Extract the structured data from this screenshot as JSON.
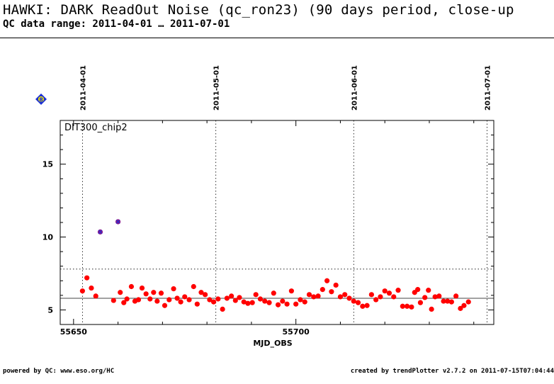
{
  "header": {
    "title": "HAWKI: DARK ReadOut Noise (qc_ron23) (90 days period, close-up",
    "subtitle": "QC data range: 2011-04-01 … 2011-07-01"
  },
  "footer": {
    "left": "powered by QC: www.eso.org/HC",
    "right": "created by trendPlotter v2.7.2 on 2011-07-15T07:04:44"
  },
  "marker_badge": "8",
  "chart_data": {
    "type": "scatter",
    "panel_label": "DIT300_chip2",
    "xlabel": "MJD_OBS",
    "ylabel": "",
    "xlim": [
      55647,
      55744.5
    ],
    "ylim": [
      4,
      18
    ],
    "x_ticks": [
      55650,
      55700
    ],
    "y_ticks": [
      5,
      10,
      15
    ],
    "month_markers": [
      {
        "x": 55652,
        "label": "2011-04-01"
      },
      {
        "x": 55682,
        "label": "2011-05-01"
      },
      {
        "x": 55713,
        "label": "2011-06-01"
      },
      {
        "x": 55743,
        "label": "2011-07-01"
      }
    ],
    "reference_line": 5.8,
    "threshold_line": 7.8,
    "colors": {
      "points": "#ff0000",
      "outliers": "#8b1a8b",
      "badge": "#1a2fd6"
    },
    "outliers": [
      {
        "x": 55656,
        "y": 10.35
      },
      {
        "x": 55660,
        "y": 11.05
      }
    ],
    "points": [
      {
        "x": 55652.0,
        "y": 6.3
      },
      {
        "x": 55653.0,
        "y": 7.2
      },
      {
        "x": 55654.0,
        "y": 6.5
      },
      {
        "x": 55655.0,
        "y": 5.95
      },
      {
        "x": 55659.0,
        "y": 5.65
      },
      {
        "x": 55660.5,
        "y": 6.2
      },
      {
        "x": 55661.3,
        "y": 5.5
      },
      {
        "x": 55662.0,
        "y": 5.75
      },
      {
        "x": 55663.0,
        "y": 6.6
      },
      {
        "x": 55663.8,
        "y": 5.6
      },
      {
        "x": 55664.6,
        "y": 5.7
      },
      {
        "x": 55665.4,
        "y": 6.5
      },
      {
        "x": 55666.3,
        "y": 6.1
      },
      {
        "x": 55667.2,
        "y": 5.75
      },
      {
        "x": 55668.0,
        "y": 6.2
      },
      {
        "x": 55668.8,
        "y": 5.6
      },
      {
        "x": 55669.7,
        "y": 6.15
      },
      {
        "x": 55670.5,
        "y": 5.3
      },
      {
        "x": 55671.5,
        "y": 5.7
      },
      {
        "x": 55672.5,
        "y": 6.45
      },
      {
        "x": 55673.3,
        "y": 5.8
      },
      {
        "x": 55674.1,
        "y": 5.55
      },
      {
        "x": 55675.0,
        "y": 5.9
      },
      {
        "x": 55676.0,
        "y": 5.7
      },
      {
        "x": 55677.0,
        "y": 6.6
      },
      {
        "x": 55677.8,
        "y": 5.4
      },
      {
        "x": 55678.7,
        "y": 6.2
      },
      {
        "x": 55679.6,
        "y": 6.05
      },
      {
        "x": 55680.6,
        "y": 5.7
      },
      {
        "x": 55681.5,
        "y": 5.55
      },
      {
        "x": 55682.5,
        "y": 5.75
      },
      {
        "x": 55683.5,
        "y": 5.05
      },
      {
        "x": 55684.5,
        "y": 5.8
      },
      {
        "x": 55685.5,
        "y": 5.95
      },
      {
        "x": 55686.4,
        "y": 5.65
      },
      {
        "x": 55687.3,
        "y": 5.85
      },
      {
        "x": 55688.3,
        "y": 5.55
      },
      {
        "x": 55689.2,
        "y": 5.45
      },
      {
        "x": 55690.2,
        "y": 5.5
      },
      {
        "x": 55691.0,
        "y": 6.05
      },
      {
        "x": 55692.0,
        "y": 5.75
      },
      {
        "x": 55693.0,
        "y": 5.6
      },
      {
        "x": 55694.0,
        "y": 5.5
      },
      {
        "x": 55695.0,
        "y": 6.15
      },
      {
        "x": 55696.0,
        "y": 5.35
      },
      {
        "x": 55697.0,
        "y": 5.6
      },
      {
        "x": 55698.0,
        "y": 5.4
      },
      {
        "x": 55699.0,
        "y": 6.3
      },
      {
        "x": 55700.0,
        "y": 5.4
      },
      {
        "x": 55701.0,
        "y": 5.7
      },
      {
        "x": 55702.0,
        "y": 5.55
      },
      {
        "x": 55703.0,
        "y": 6.05
      },
      {
        "x": 55704.0,
        "y": 5.9
      },
      {
        "x": 55705.0,
        "y": 5.95
      },
      {
        "x": 55706.0,
        "y": 6.4
      },
      {
        "x": 55707.0,
        "y": 7.0
      },
      {
        "x": 55708.0,
        "y": 6.25
      },
      {
        "x": 55709.0,
        "y": 6.7
      },
      {
        "x": 55710.0,
        "y": 5.9
      },
      {
        "x": 55711.0,
        "y": 6.05
      },
      {
        "x": 55712.0,
        "y": 5.8
      },
      {
        "x": 55713.0,
        "y": 5.6
      },
      {
        "x": 55714.0,
        "y": 5.5
      },
      {
        "x": 55715.0,
        "y": 5.25
      },
      {
        "x": 55716.0,
        "y": 5.3
      },
      {
        "x": 55717.0,
        "y": 6.05
      },
      {
        "x": 55718.0,
        "y": 5.7
      },
      {
        "x": 55719.0,
        "y": 5.9
      },
      {
        "x": 55720.0,
        "y": 6.3
      },
      {
        "x": 55721.0,
        "y": 6.15
      },
      {
        "x": 55722.0,
        "y": 5.9
      },
      {
        "x": 55723.0,
        "y": 6.35
      },
      {
        "x": 55724.0,
        "y": 5.25
      },
      {
        "x": 55725.0,
        "y": 5.25
      },
      {
        "x": 55726.0,
        "y": 5.2
      },
      {
        "x": 55726.7,
        "y": 6.2
      },
      {
        "x": 55727.4,
        "y": 6.4
      },
      {
        "x": 55728.0,
        "y": 5.5
      },
      {
        "x": 55729.0,
        "y": 5.85
      },
      {
        "x": 55729.8,
        "y": 6.35
      },
      {
        "x": 55730.5,
        "y": 5.05
      },
      {
        "x": 55731.3,
        "y": 5.9
      },
      {
        "x": 55732.2,
        "y": 5.95
      },
      {
        "x": 55733.2,
        "y": 5.6
      },
      {
        "x": 55734.1,
        "y": 5.6
      },
      {
        "x": 55735.0,
        "y": 5.55
      },
      {
        "x": 55736.0,
        "y": 5.95
      },
      {
        "x": 55737.0,
        "y": 5.1
      },
      {
        "x": 55737.8,
        "y": 5.3
      },
      {
        "x": 55738.8,
        "y": 5.55
      }
    ]
  }
}
